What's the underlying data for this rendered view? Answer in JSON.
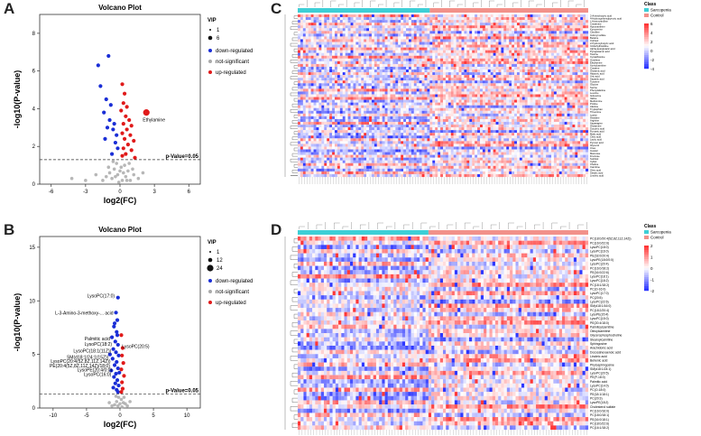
{
  "panels": {
    "A": {
      "letter": "A"
    },
    "B": {
      "letter": "B"
    },
    "C": {
      "letter": "C"
    },
    "D": {
      "letter": "D"
    }
  },
  "chart_data": [
    {
      "id": "A",
      "type": "scatter",
      "title": "Volcano Plot",
      "xlabel": "log2(FC)",
      "ylabel": "-log10(P-value)",
      "xlim": [
        -7,
        7
      ],
      "ylim": [
        0,
        9
      ],
      "xticks": [
        "-6",
        "-3",
        "0",
        "3",
        "6"
      ],
      "yticks": [
        "0",
        "2",
        "4",
        "6",
        "8"
      ],
      "xtick_values": [
        -6,
        -3,
        0,
        3,
        6
      ],
      "ytick_values": [
        0,
        2,
        4,
        6,
        8
      ],
      "threshold_label": "p-Value=0.05",
      "threshold": 1.3,
      "vip_title": "VIP",
      "vip_sizes": [
        "1",
        "6"
      ],
      "legend": [
        "down-regulated",
        "not-significant",
        "up-regulated"
      ],
      "colors": {
        "down": "#1a2ed6",
        "ns": "#aaaaaa",
        "up": "#e01a1a"
      },
      "annotation": {
        "text": "Ethylamine",
        "x": 2.3,
        "y": 3.8
      },
      "down": [
        [
          -1.9,
          6.3
        ],
        [
          -1.0,
          6.8
        ],
        [
          -1.7,
          5.2
        ],
        [
          -1.2,
          4.5
        ],
        [
          -0.8,
          4.2
        ],
        [
          -1.4,
          3.8
        ],
        [
          -0.9,
          3.4
        ],
        [
          -0.5,
          3.2
        ],
        [
          -1.1,
          3.0
        ],
        [
          -0.6,
          2.9
        ],
        [
          -0.3,
          2.6
        ],
        [
          -1.3,
          2.4
        ],
        [
          -0.4,
          2.2
        ],
        [
          -0.2,
          1.9
        ],
        [
          -0.7,
          1.6
        ]
      ],
      "up": [
        [
          0.2,
          5.3
        ],
        [
          0.4,
          4.8
        ],
        [
          0.3,
          4.3
        ],
        [
          0.6,
          4.1
        ],
        [
          0.1,
          3.9
        ],
        [
          0.5,
          3.6
        ],
        [
          0.8,
          3.4
        ],
        [
          0.3,
          3.2
        ],
        [
          1.0,
          3.1
        ],
        [
          0.6,
          2.9
        ],
        [
          0.2,
          2.7
        ],
        [
          0.9,
          2.6
        ],
        [
          0.4,
          2.4
        ],
        [
          1.2,
          2.3
        ],
        [
          0.7,
          2.1
        ],
        [
          0.3,
          1.9
        ],
        [
          1.0,
          1.8
        ],
        [
          0.5,
          1.6
        ],
        [
          0.2,
          1.5
        ],
        [
          1.3,
          1.4
        ],
        [
          2.3,
          3.8
        ]
      ],
      "ns": [
        [
          -0.3,
          1.1
        ],
        [
          -0.5,
          0.8
        ],
        [
          -0.2,
          0.5
        ],
        [
          0.1,
          0.9
        ],
        [
          0.3,
          0.6
        ],
        [
          0.5,
          0.4
        ],
        [
          -0.7,
          0.3
        ],
        [
          -0.9,
          0.6
        ],
        [
          0.7,
          0.7
        ],
        [
          0.9,
          0.2
        ],
        [
          -1.2,
          0.4
        ],
        [
          1.2,
          0.5
        ],
        [
          -1.5,
          0.2
        ],
        [
          1.6,
          0.3
        ],
        [
          0.2,
          0.2
        ],
        [
          -0.1,
          0.1
        ],
        [
          0.4,
          1.0
        ],
        [
          -0.6,
          1.2
        ],
        [
          0.8,
          1.1
        ],
        [
          -1.0,
          0.9
        ],
        [
          1.1,
          0.8
        ],
        [
          -4.2,
          0.3
        ],
        [
          -2.1,
          0.5
        ],
        [
          2.0,
          0.6
        ],
        [
          -3.0,
          0.2
        ],
        [
          -0.4,
          0.4
        ],
        [
          0.6,
          0.2
        ],
        [
          0.0,
          0.7
        ]
      ]
    },
    {
      "id": "B",
      "type": "scatter",
      "title": "Volcano Plot",
      "xlabel": "log2(FC)",
      "ylabel": "-log10(P-value)",
      "xlim": [
        -12,
        12
      ],
      "ylim": [
        0,
        16
      ],
      "xticks": [
        "-10",
        "-5",
        "0",
        "5",
        "10"
      ],
      "yticks": [
        "0",
        "5",
        "10",
        "15"
      ],
      "xtick_values": [
        -10,
        -5,
        0,
        5,
        10
      ],
      "ytick_values": [
        0,
        5,
        10,
        15
      ],
      "threshold_label": "p-Value=0.05",
      "threshold": 1.3,
      "vip_title": "VIP",
      "vip_sizes": [
        "1",
        "12",
        "24"
      ],
      "legend": [
        "down-regulated",
        "not-significant",
        "up-regulated"
      ],
      "colors": {
        "down": "#1a2ed6",
        "ns": "#aaaaaa",
        "up": "#e01a1a"
      },
      "labels": [
        {
          "text": "LysoPC(17:0)",
          "x": -0.8,
          "y": 10.3
        },
        {
          "text": "L-3-Amino-3-methoxy-... acid",
          "x": -1.0,
          "y": 8.7
        },
        {
          "text": "Palmitic acid",
          "x": -1.5,
          "y": 6.3
        },
        {
          "text": "LysoPC(18:2)",
          "x": -1.2,
          "y": 5.8
        },
        {
          "text": "LysoPC(20:5)",
          "x": 0.3,
          "y": 5.6
        },
        {
          "text": "LysoPC(18:1(11Z))",
          "x": -1.3,
          "y": 5.2
        },
        {
          "text": "SM(d18:1/24:1(15Z))",
          "x": -1.7,
          "y": 4.6
        },
        {
          "text": "LysoPC(20:4(5Z,8Z,11Z,14Z))",
          "x": -1.4,
          "y": 4.2
        },
        {
          "text": "PE(20:4(5Z,8Z,11Z,14Z)/18:0)",
          "x": -1.5,
          "y": 3.8
        },
        {
          "text": "LysoPE(20:4/0:0)",
          "x": -1.2,
          "y": 3.4
        },
        {
          "text": "LysoPC(16:0)",
          "x": -1.3,
          "y": 3.0
        }
      ],
      "down": [
        [
          -0.3,
          10.3
        ],
        [
          -0.6,
          8.9
        ],
        [
          -0.4,
          8.2
        ],
        [
          -0.9,
          7.6
        ],
        [
          -0.5,
          7.1
        ],
        [
          -1.2,
          6.6
        ],
        [
          -0.7,
          6.2
        ],
        [
          -0.3,
          5.9
        ],
        [
          -1.0,
          5.5
        ],
        [
          -0.6,
          5.2
        ],
        [
          -0.2,
          4.9
        ],
        [
          -1.1,
          4.6
        ],
        [
          -0.5,
          4.3
        ],
        [
          -0.8,
          4.0
        ],
        [
          -0.3,
          3.7
        ],
        [
          -1.3,
          3.5
        ],
        [
          -0.6,
          3.2
        ],
        [
          -0.9,
          2.9
        ],
        [
          -0.4,
          2.6
        ],
        [
          -0.7,
          2.3
        ],
        [
          -0.2,
          2.1
        ],
        [
          -1.0,
          1.9
        ],
        [
          -0.5,
          1.7
        ],
        [
          -0.3,
          1.5
        ],
        [
          -0.8,
          7.9
        ],
        [
          -0.4,
          6.8
        ],
        [
          -1.5,
          5.0
        ],
        [
          -0.1,
          3.3
        ]
      ],
      "up": [
        [
          0.2,
          6.8
        ],
        [
          0.4,
          5.6
        ],
        [
          0.3,
          4.9
        ],
        [
          0.5,
          4.2
        ],
        [
          0.2,
          3.6
        ],
        [
          0.6,
          3.0
        ],
        [
          0.3,
          2.4
        ],
        [
          0.4,
          1.8
        ],
        [
          0.2,
          1.5
        ]
      ],
      "ns": [
        [
          -0.2,
          1.0
        ],
        [
          0.2,
          0.8
        ],
        [
          -0.5,
          0.6
        ],
        [
          0.5,
          0.5
        ],
        [
          -0.8,
          0.3
        ],
        [
          0.8,
          0.4
        ],
        [
          -1.2,
          0.2
        ],
        [
          1.1,
          0.2
        ],
        [
          0.0,
          0.4
        ],
        [
          -0.3,
          0.2
        ],
        [
          0.3,
          0.1
        ],
        [
          -1.6,
          0.5
        ],
        [
          1.5,
          0.6
        ],
        [
          -0.6,
          1.1
        ],
        [
          0.6,
          1.0
        ]
      ]
    }
  ],
  "heatmapC": {
    "class_title": "Class",
    "groups": [
      "Sarcopenia",
      "Control"
    ],
    "group_colors": [
      "#3ecfd6",
      "#f2918a"
    ],
    "scale_ticks": [
      "6",
      "4",
      "2",
      "0",
      "-2",
      "-4"
    ],
    "rows": [
      "2-Aminobutyric acid",
      "4-Hydroxyphenylpyruvic acid",
      "L-Homocitrulline",
      "Creatinine",
      "Hypoxanthine",
      "Kynurenine",
      "Citrulline",
      "Indoxyl sulfate",
      "Betaine",
      "Cortisol",
      "2-Hydroxybutyric acid",
      "3-Methylhistidine",
      "Alpha-ketoglutaric acid",
      "Pyroglutamic acid",
      "Taurine",
      "Cystathionine",
      "Ornithine",
      "Ethylamine",
      "Acetylcarnitine",
      "Creatine",
      "Glutamic acid",
      "Hippuric acid",
      "Uric acid",
      "Aspartic acid",
      "Tyrosine",
      "Glycine",
      "Serine",
      "Phenylalanine",
      "Leucine",
      "Isoleucine",
      "Valine",
      "Methionine",
      "Proline",
      "Alanine",
      "Tryptophan",
      "Threonine",
      "Lysine",
      "Histidine",
      "Arginine",
      "Asparagine",
      "Glutamine",
      "Succinic acid",
      "Fumaric acid",
      "Malic acid",
      "Citric acid",
      "Lactic acid",
      "Pyruvic acid",
      "Glycerol",
      "Urea",
      "Inositol",
      "Mannose",
      "Fructose",
      "Sorbitol",
      "Xylitol",
      "Choline",
      "Carnitine",
      "Oleic acid",
      "Stearic acid",
      "Linoleic acid"
    ]
  },
  "heatmapD": {
    "class_title": "Class",
    "groups": [
      "Sarcopenia",
      "Control"
    ],
    "group_colors": [
      "#3ecfd6",
      "#f2918a"
    ],
    "scale_ticks": [
      "2",
      "1",
      "0",
      "-1",
      "-2"
    ],
    "rows": [
      "PC(18:0/20:4(5Z,8Z,11Z,14Z))",
      "PC(16:0/22:6)",
      "LysoPC(18:0)",
      "LysoPC(16:0)",
      "PE(18:0/20:4)",
      "LysoPE(18:0/0:0)",
      "LysoPC(20:4)",
      "PC(16:0/18:2)",
      "PE(16:0/22:6)",
      "LysoPC(18:1)",
      "LysoPC(18:2)",
      "PC(18:1/18:2)",
      "PC(O-16:0)",
      "LysoPC(17:0)",
      "PC(20:5)",
      "LysoPC(22:6)",
      "SM(d18:1/16:0)",
      "PC(18:2/20:4)",
      "LysoPE(20:4)",
      "LysoPC(15:0)",
      "PE(20:4/18:0)",
      "Palmitoylcarnitine",
      "Oleoylcarnitine",
      "Glycerophosphocholine",
      "Stearoylcarnitine",
      "Sphingosine",
      "Arachidonic acid",
      "Docosahexaenoic acid",
      "Linoleic acid",
      "Behenic acid",
      "Phytosphingosine",
      "SM(d18:1/24:1)",
      "LysoPC(20:5)",
      "PE(P-18:0)",
      "Palmitic acid",
      "LysoPC(14:0)",
      "PC(O-18:0)",
      "PE(18:1/18:1)",
      "PC(20:3)",
      "LysoPE(18:2)",
      "Cholesterol sulfate",
      "PC(16:0/16:0)",
      "PC(18:0/18:1)",
      "PE(16:0/18:1)",
      "PC(18:0/22:6)",
      "PC(16:1/18:2)"
    ]
  }
}
